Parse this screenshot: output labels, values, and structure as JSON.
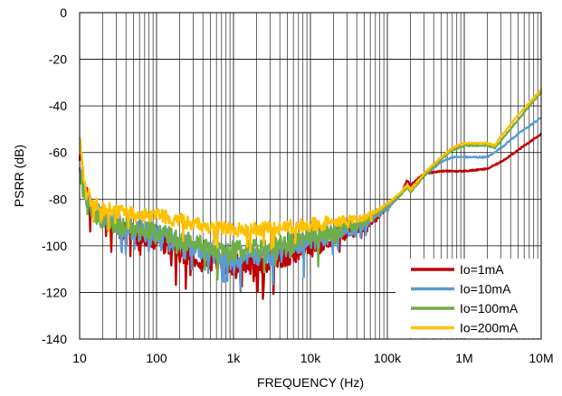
{
  "chart_data": {
    "type": "line",
    "title": "",
    "xlabel": "FREQUENCY (Hz)",
    "ylabel": "PSRR (dB)",
    "x_scale": "log",
    "xlim": [
      10,
      10000000
    ],
    "ylim": [
      -140,
      0
    ],
    "x_ticks": [
      10,
      100,
      1000,
      10000,
      100000,
      1000000,
      10000000
    ],
    "x_tick_labels": [
      "10",
      "100",
      "1k",
      "10k",
      "100k",
      "1M",
      "10M"
    ],
    "y_ticks": [
      0,
      -20,
      -40,
      -60,
      -80,
      -100,
      -120,
      -140
    ],
    "y_tick_labels": [
      "0",
      "-20",
      "-40",
      "-60",
      "-80",
      "-100",
      "-120",
      "-140"
    ],
    "grid": "major and minor (log)",
    "legend_position": "bottom-right",
    "series": [
      {
        "name": "Io=1mA",
        "color": "#c00000",
        "noise": 10,
        "x": [
          10,
          12,
          15,
          20,
          30,
          50,
          100,
          200,
          500,
          1000,
          2000,
          5000,
          10000,
          20000,
          50000,
          100000,
          150000,
          180000,
          200000,
          300000,
          500000,
          1000000,
          2000000,
          3000000,
          5000000,
          10000000
        ],
        "y": [
          -60,
          -78,
          -84,
          -88,
          -92,
          -94,
          -97,
          -102,
          -106,
          -108,
          -108,
          -104,
          -100,
          -96,
          -92,
          -84,
          -78,
          -72,
          -74,
          -69,
          -68,
          -68,
          -67,
          -64,
          -59,
          -52
        ]
      },
      {
        "name": "Io=10mA",
        "color": "#5b9bd5",
        "noise": 9,
        "x": [
          10,
          12,
          15,
          20,
          30,
          50,
          100,
          200,
          500,
          1000,
          2000,
          5000,
          10000,
          20000,
          50000,
          100000,
          150000,
          180000,
          200000,
          300000,
          500000,
          700000,
          1000000,
          2000000,
          3000000,
          5000000,
          10000000
        ],
        "y": [
          -65,
          -80,
          -85,
          -88,
          -91,
          -93,
          -95,
          -99,
          -103,
          -105,
          -104,
          -101,
          -98,
          -95,
          -91,
          -84,
          -78,
          -74,
          -76,
          -70,
          -64,
          -62,
          -62,
          -62,
          -58,
          -52,
          -45
        ]
      },
      {
        "name": "Io=100mA",
        "color": "#70ad47",
        "noise": 8,
        "x": [
          10,
          12,
          15,
          20,
          30,
          50,
          100,
          200,
          500,
          1000,
          2000,
          5000,
          10000,
          20000,
          50000,
          100000,
          150000,
          180000,
          200000,
          300000,
          500000,
          700000,
          1000000,
          2000000,
          2500000,
          3000000,
          5000000,
          10000000
        ],
        "y": [
          -68,
          -82,
          -86,
          -89,
          -91,
          -92,
          -94,
          -97,
          -101,
          -102,
          -101,
          -98,
          -96,
          -94,
          -90,
          -83,
          -78,
          -75,
          -77,
          -70,
          -63,
          -59,
          -57,
          -57,
          -58,
          -55,
          -46,
          -34
        ]
      },
      {
        "name": "Io=200mA",
        "color": "#ffc000",
        "noise": 6,
        "x": [
          10,
          12,
          15,
          20,
          30,
          50,
          100,
          200,
          500,
          1000,
          2000,
          5000,
          10000,
          20000,
          50000,
          100000,
          150000,
          180000,
          200000,
          300000,
          500000,
          700000,
          1000000,
          2000000,
          2500000,
          3000000,
          5000000,
          10000000
        ],
        "y": [
          -55,
          -76,
          -82,
          -84,
          -85,
          -86,
          -87,
          -89,
          -92,
          -93,
          -93,
          -92,
          -91,
          -90,
          -88,
          -82,
          -77,
          -74,
          -76,
          -69,
          -62,
          -58,
          -56,
          -56,
          -57,
          -53,
          -44,
          -33
        ]
      }
    ]
  }
}
